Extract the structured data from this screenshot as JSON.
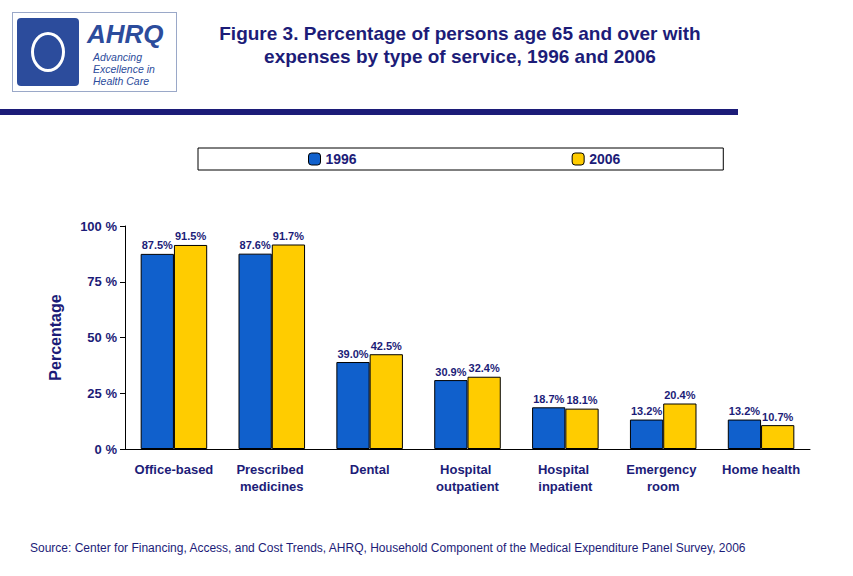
{
  "header": {
    "logo": "AHRQ",
    "logo_tagline": "Advancing Excellence in Health Care"
  },
  "chart_data": {
    "type": "bar",
    "title": "Figure 3. Percentage of persons age 65 and over with expenses by type of service, 1996 and 2006",
    "y_label": "Percentage",
    "source": "Source: Center for Financing, Access, and Cost Trends, AHRQ, Household Component of the Medical Expenditure Panel Survey, 2006",
    "categories": [
      "Office-based",
      "Prescribed medicines",
      "Dental",
      "Hospital outpatient",
      "Hospital inpatient",
      "Emergency room",
      "Home health"
    ],
    "series": [
      {
        "name": "1996",
        "color": "#1060cc",
        "values": [
          87.5,
          87.6,
          39.0,
          30.9,
          18.7,
          13.2,
          13.2
        ],
        "value_labels": [
          "87.5%",
          "87.6%",
          "39.0%",
          "30.9%",
          "18.7%",
          "13.2%",
          "13.2%"
        ]
      },
      {
        "name": "2006",
        "color": "#ffcc00",
        "values": [
          91.5,
          91.7,
          42.5,
          32.4,
          18.1,
          20.4,
          10.7
        ],
        "value_labels": [
          "91.5%",
          "91.7%",
          "42.5%",
          "32.4%",
          "18.1%",
          "20.4%",
          "10.7%"
        ]
      }
    ],
    "ylim": [
      0,
      100
    ],
    "yticks": [
      {
        "value": 0,
        "label": "0 %"
      },
      {
        "value": 25,
        "label": "25 %"
      },
      {
        "value": 50,
        "label": "50 %"
      },
      {
        "value": 75,
        "label": "75 %"
      },
      {
        "value": 100,
        "label": "100 %"
      }
    ],
    "grid": false,
    "legend": "top",
    "data_labels": true
  }
}
